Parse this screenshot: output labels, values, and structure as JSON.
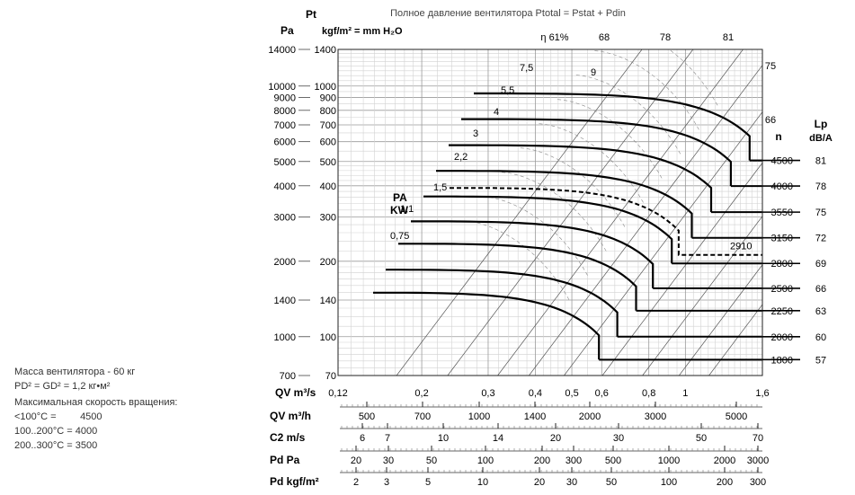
{
  "chart_data": {
    "type": "line",
    "title": "Полное давление вентилятора Ptotal = Pstat + Pdin",
    "y_axis": {
      "title": "Pt",
      "pa_unit": "Pa",
      "kgf_unit": "kgf/m² = mm H₂O",
      "scale": "log",
      "ylim_pa": [
        700,
        14000
      ],
      "ticks_pa": [
        14000,
        10000,
        9000,
        8000,
        7000,
        6000,
        5000,
        4000,
        3000,
        2000,
        1400,
        1000,
        700
      ],
      "ticks_kgf": [
        1400,
        1000,
        900,
        800,
        700,
        600,
        500,
        400,
        300,
        200,
        140,
        100,
        70
      ]
    },
    "x_axis": {
      "label": "QV m³/s",
      "scale": "log",
      "xlim": [
        0.12,
        1.6
      ],
      "ticks": [
        {
          "v": 0.12,
          "t": "0,12"
        },
        {
          "v": 0.2,
          "t": "0,2"
        },
        {
          "v": 0.3,
          "t": "0,3"
        },
        {
          "v": 0.4,
          "t": "0,4"
        },
        {
          "v": 0.5,
          "t": "0,5"
        },
        {
          "v": 0.6,
          "t": "0,6"
        },
        {
          "v": 0.8,
          "t": "0,8"
        },
        {
          "v": 1.0,
          "t": "1"
        },
        {
          "v": 1.6,
          "t": "1,6"
        }
      ]
    },
    "speed_series": [
      {
        "rpm": 4500,
        "lp": 81,
        "pa_max": 5050,
        "q_max": 1.48
      },
      {
        "rpm": 4000,
        "lp": 78,
        "pa_max": 3990,
        "q_max": 1.32
      },
      {
        "rpm": 3550,
        "lp": 75,
        "pa_max": 3140,
        "q_max": 1.17
      },
      {
        "rpm": 3150,
        "lp": 72,
        "pa_max": 2480,
        "q_max": 1.04
      },
      {
        "rpm": 2800,
        "lp": 69,
        "pa_max": 1960,
        "q_max": 0.92
      },
      {
        "rpm": 2500,
        "lp": 66,
        "pa_max": 1560,
        "q_max": 0.82
      },
      {
        "rpm": 2250,
        "lp": 63,
        "pa_max": 1270,
        "q_max": 0.74
      },
      {
        "rpm": 2000,
        "lp": 60,
        "pa_max": 1000,
        "q_max": 0.66
      },
      {
        "rpm": 1800,
        "lp": 57,
        "pa_max": 810,
        "q_max": 0.59
      }
    ],
    "dashed_series": {
      "rpm": 2910,
      "pa_max": 2120,
      "q_max": 0.96
    },
    "power_labels": [
      "0,75",
      "1,1",
      "1,5",
      "2,2",
      "3",
      "4",
      "5,5",
      "7,5",
      "9"
    ],
    "efficiency_labels": [
      "η 61%",
      "68",
      "78",
      "81",
      "75",
      "66"
    ],
    "power_axis_label": [
      "PA",
      "KW"
    ],
    "n_label": "n",
    "lp_label": [
      "Lp",
      "dB/A"
    ],
    "secondary_axes": [
      {
        "label": "QV m³/h",
        "ticks": [
          "500",
          "700",
          "1000",
          "1400",
          "2000",
          "3000",
          "5000"
        ]
      },
      {
        "label": "C2 m/s",
        "ticks": [
          "6",
          "7",
          "10",
          "14",
          "20",
          "30",
          "50",
          "70"
        ]
      },
      {
        "label": "Pd Pa",
        "ticks": [
          "20",
          "30",
          "50",
          "100",
          "200",
          "300",
          "500",
          "1000",
          "2000",
          "3000"
        ]
      },
      {
        "label": "Pd kgf/m²",
        "ticks": [
          "2",
          "3",
          "5",
          "10",
          "20",
          "30",
          "50",
          "100",
          "200",
          "300"
        ]
      }
    ]
  },
  "specs": {
    "mass": "Масса вентилятора - 60 кг",
    "inertia": "PD² = GD² = 1,2 кг•м²",
    "max_speed_title": "Максимальная скорость вращения:",
    "rows": [
      {
        "range": "<100°C =",
        "value": "4500"
      },
      {
        "range": "100..200°C =",
        "value": "4000"
      },
      {
        "range": "200..300°C =",
        "value": "3500"
      }
    ]
  }
}
